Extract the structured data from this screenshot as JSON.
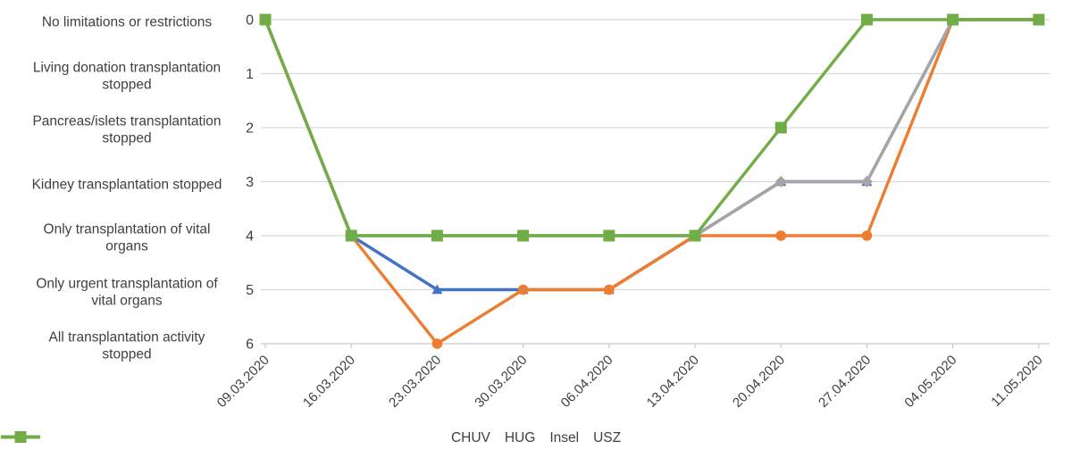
{
  "chart_data": {
    "type": "line",
    "title": "",
    "x": [
      "09.03.2020",
      "16.03.2020",
      "23.03.2020",
      "30.03.2020",
      "06.04.2020",
      "13.04.2020",
      "20.04.2020",
      "27.04.2020",
      "04.05.2020",
      "11.05.2020"
    ],
    "y_levels": [
      {
        "value": 0,
        "label": "No limitations or restrictions"
      },
      {
        "value": 1,
        "label": "Living donation transplantation stopped"
      },
      {
        "value": 2,
        "label": "Pancreas/islets transplantation stopped"
      },
      {
        "value": 3,
        "label": "Kidney transplantation stopped"
      },
      {
        "value": 4,
        "label": "Only transplantation of vital organs"
      },
      {
        "value": 5,
        "label": "Only urgent transplantation of vital organs"
      },
      {
        "value": 6,
        "label": "All transplantation activity stopped"
      }
    ],
    "ylim": [
      0,
      6
    ],
    "y_direction": "down",
    "grid": true,
    "legend_position": "bottom",
    "series": [
      {
        "name": "CHUV",
        "color": "#4472C4",
        "marker": "triangle",
        "values": [
          0,
          4,
          5,
          5,
          5,
          4,
          3,
          3,
          0,
          0
        ]
      },
      {
        "name": "HUG",
        "color": "#ED7D31",
        "marker": "circle",
        "values": [
          0,
          4,
          6,
          5,
          5,
          4,
          4,
          4,
          0,
          0
        ]
      },
      {
        "name": "Insel",
        "color": "#A5A5A5",
        "marker": "diamond",
        "values": [
          0,
          4,
          4,
          4,
          4,
          4,
          3,
          3,
          0,
          0
        ]
      },
      {
        "name": "USZ",
        "color": "#70AD47",
        "marker": "square",
        "values": [
          0,
          4,
          4,
          4,
          4,
          4,
          2,
          0,
          0,
          0
        ]
      }
    ]
  },
  "colors": {
    "text": "#404040",
    "grid": "#D9D9D9",
    "axis": "#C9C9C9",
    "chuv_blue": "#4472C4",
    "hug_orange": "#ED7D31",
    "insel_gray": "#A5A5A5",
    "usz_green": "#70AD47"
  }
}
